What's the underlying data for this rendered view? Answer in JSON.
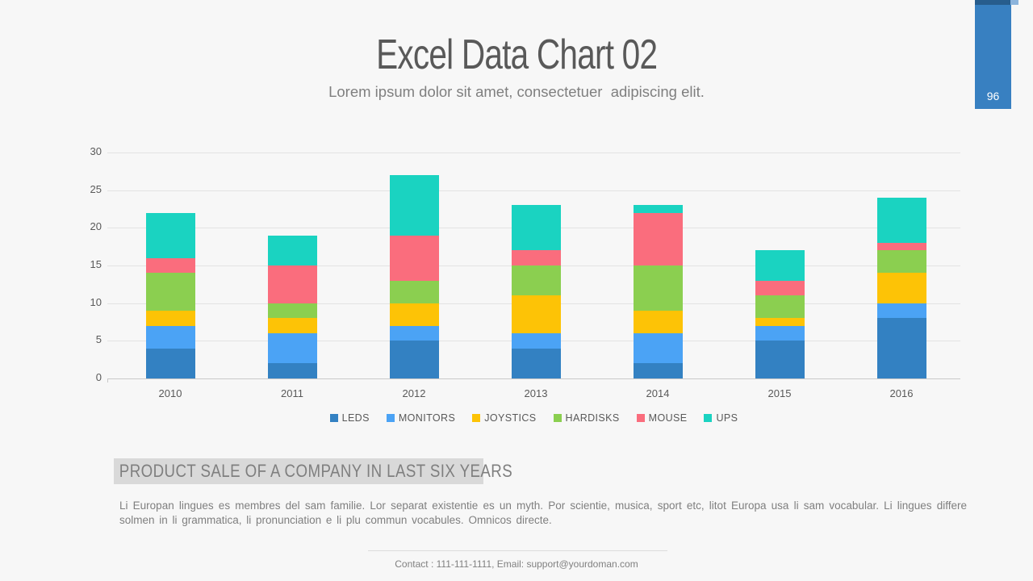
{
  "page": {
    "title": "Excel Data Chart 02",
    "subtitle": "Lorem ipsum dolor sit amet, consectetuer  adipiscing elit.",
    "page_number": "96",
    "background_color": "#f7f7f7",
    "badge": {
      "main": "#3880c1",
      "ribbon_dark": "#275d8d",
      "ribbon_tip": "#8cb4dc"
    }
  },
  "chart_data": {
    "type": "bar",
    "stacked": true,
    "title": "",
    "xlabel": "",
    "ylabel": "",
    "categories": [
      "2010",
      "2011",
      "2012",
      "2013",
      "2014",
      "2015",
      "2016"
    ],
    "series": [
      {
        "name": "LEDS",
        "color": "#3381c2",
        "values": [
          4,
          2,
          5,
          4,
          2,
          5,
          8
        ]
      },
      {
        "name": "MONITORS",
        "color": "#4ba3f5",
        "values": [
          3,
          4,
          2,
          2,
          4,
          2,
          2
        ]
      },
      {
        "name": "JOYSTICS",
        "color": "#fdc306",
        "values": [
          2,
          2,
          3,
          5,
          3,
          1,
          4
        ]
      },
      {
        "name": "HARDISKS",
        "color": "#8bcf50",
        "values": [
          5,
          2,
          3,
          4,
          6,
          3,
          3
        ]
      },
      {
        "name": "MOUSE",
        "color": "#fa6d7d",
        "values": [
          2,
          5,
          6,
          2,
          7,
          2,
          1
        ]
      },
      {
        "name": "UPS",
        "color": "#1ad3c1",
        "values": [
          6,
          4,
          8,
          6,
          1,
          4,
          6
        ]
      }
    ],
    "totals": [
      22,
      19,
      27,
      23,
      23,
      17,
      24
    ],
    "ylim": [
      0,
      30
    ],
    "yticks": [
      0,
      5,
      10,
      15,
      20,
      25,
      30
    ],
    "grid": true,
    "legend_position": "bottom",
    "gridline_color": "#e3e3e3",
    "axis_color": "#c9c9c9",
    "tick_label_color": "#595959"
  },
  "section": {
    "heading": "PRODUCT SALE OF A COMPANY IN LAST SIX YEARS",
    "body": "Li Europan lingues es membres del sam familie. Lor separat existentie es un myth. Por scientie, musica, sport etc, litot Europa usa li sam vocabular. Li lingues differe solmen in li grammatica, li pronunciation e li plu commun vocabules. Omnicos directe."
  },
  "footer": {
    "contact": "Contact : 111-111-1111, Email: support@yourdoman.com"
  }
}
